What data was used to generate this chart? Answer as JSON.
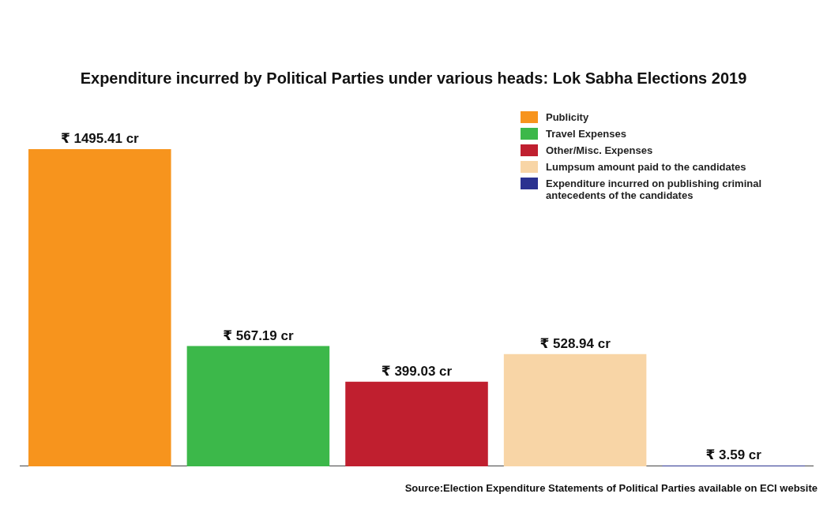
{
  "chart_data": {
    "type": "bar",
    "title": "Expenditure incurred by Political Parties under various heads: Lok Sabha Elections 2019",
    "categories": [
      null
    ],
    "series": [
      {
        "name": "Publicity",
        "color": "#f7941d",
        "values": [
          1495.41
        ],
        "value_labels": [
          "₹ 1495.41 cr"
        ]
      },
      {
        "name": "Travel Expenses",
        "color": "#3cb84a",
        "values": [
          567.19
        ],
        "value_labels": [
          "₹ 567.19 cr"
        ]
      },
      {
        "name": "Other/Misc. Expenses",
        "color": "#c01f2f",
        "values": [
          399.03
        ],
        "value_labels": [
          "₹ 399.03 cr"
        ]
      },
      {
        "name": "Lumpsum amount paid to the candidates",
        "color": "#f8d5a6",
        "values": [
          528.94
        ],
        "value_labels": [
          "₹ 528.94 cr"
        ]
      },
      {
        "name": "Expenditure incurred on publishing criminal antecedents of the candidates",
        "color": "#2b3290",
        "values": [
          3.59
        ],
        "value_labels": [
          "₹ 3.59 cr"
        ]
      }
    ],
    "legend": "top right",
    "grid": false,
    "tick_labels": false,
    "annotations": [
      "Source:Election Expenditure Statements of Political Parties available on ECI website"
    ]
  }
}
